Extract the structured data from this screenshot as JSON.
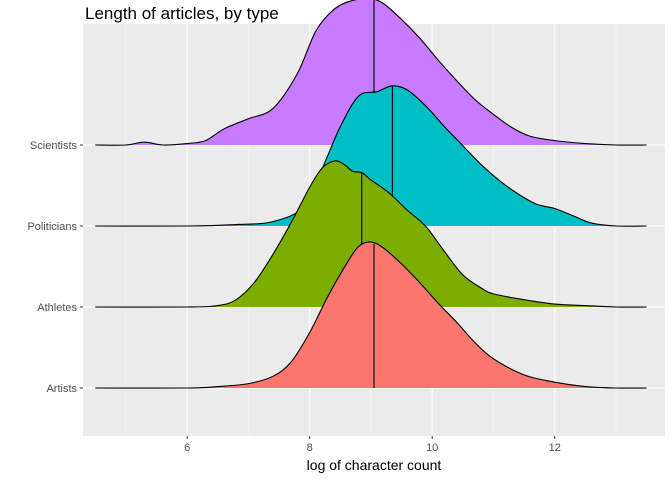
{
  "chart_data": {
    "type": "ridgeline",
    "title": "Length of articles, by type",
    "xlabel": "log of character count",
    "ylabel": "",
    "xlim": [
      4.3,
      13.8
    ],
    "xticks": [
      6,
      8,
      10,
      12
    ],
    "grid": true,
    "legend": "none",
    "categories": [
      "Artists",
      "Athletes",
      "Politicians",
      "Scientists"
    ],
    "series": [
      {
        "name": "Artists",
        "color": "#F8766D",
        "median": 9.05,
        "density_x": [
          4.5,
          6.0,
          6.5,
          7.0,
          7.4,
          7.7,
          8.0,
          8.3,
          8.6,
          8.8,
          9.0,
          9.2,
          9.5,
          9.8,
          10.1,
          10.4,
          10.7,
          11.0,
          11.5,
          12.0,
          12.5,
          13.0,
          13.5
        ],
        "density_y": [
          0.0,
          0.0,
          0.01,
          0.03,
          0.08,
          0.18,
          0.38,
          0.63,
          0.85,
          0.97,
          1.0,
          0.96,
          0.85,
          0.72,
          0.58,
          0.45,
          0.31,
          0.2,
          0.09,
          0.04,
          0.01,
          0.0,
          0.0
        ]
      },
      {
        "name": "Athletes",
        "color": "#7CAE00",
        "median": 8.85,
        "density_x": [
          4.5,
          6.0,
          6.5,
          6.8,
          7.1,
          7.4,
          7.7,
          8.0,
          8.2,
          8.4,
          8.55,
          8.7,
          8.85,
          9.0,
          9.3,
          9.6,
          9.9,
          10.2,
          10.5,
          10.8,
          11.0,
          11.5,
          12.0,
          12.5,
          13.0,
          13.5
        ],
        "density_y": [
          0.0,
          0.0,
          0.01,
          0.05,
          0.17,
          0.36,
          0.58,
          0.82,
          0.95,
          1.0,
          0.98,
          0.93,
          0.92,
          0.87,
          0.78,
          0.66,
          0.55,
          0.38,
          0.22,
          0.13,
          0.09,
          0.05,
          0.02,
          0.01,
          0.0,
          0.0
        ]
      },
      {
        "name": "Politicians",
        "color": "#00BFC4",
        "median": 9.35,
        "density_x": [
          4.5,
          6.0,
          6.8,
          7.4,
          7.9,
          8.2,
          8.5,
          8.8,
          9.1,
          9.35,
          9.6,
          9.9,
          10.2,
          10.5,
          10.8,
          11.1,
          11.4,
          11.7,
          12.0,
          12.3,
          12.6,
          13.0,
          13.5
        ],
        "density_y": [
          0.0,
          0.0,
          0.01,
          0.03,
          0.13,
          0.39,
          0.68,
          0.89,
          0.92,
          0.96,
          0.93,
          0.82,
          0.68,
          0.55,
          0.42,
          0.31,
          0.22,
          0.15,
          0.12,
          0.07,
          0.02,
          0.0,
          0.0
        ]
      },
      {
        "name": "Scientists",
        "color": "#C77CFF",
        "median": 9.05,
        "density_x": [
          4.5,
          5.0,
          5.3,
          5.6,
          6.0,
          6.3,
          6.6,
          7.0,
          7.4,
          7.8,
          8.1,
          8.4,
          8.7,
          9.0,
          9.2,
          9.5,
          9.8,
          10.1,
          10.4,
          10.7,
          11.0,
          11.3,
          11.6,
          12.0,
          12.5,
          13.0,
          13.5
        ],
        "density_y": [
          0.0,
          0.0,
          0.02,
          0.0,
          0.01,
          0.03,
          0.11,
          0.18,
          0.25,
          0.49,
          0.78,
          0.93,
          0.99,
          1.0,
          0.97,
          0.86,
          0.73,
          0.58,
          0.44,
          0.31,
          0.21,
          0.12,
          0.06,
          0.03,
          0.01,
          0.0,
          0.0
        ]
      }
    ]
  }
}
